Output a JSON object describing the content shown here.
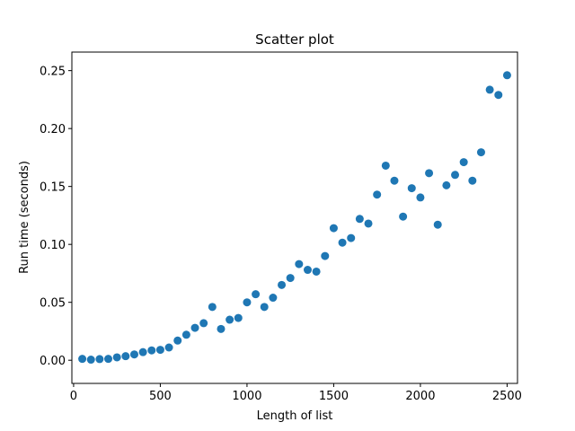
{
  "chart_data": {
    "type": "scatter",
    "title": "Scatter plot",
    "xlabel": "Length of list",
    "ylabel": "Run time (seconds)",
    "xlim": [
      -10,
      2560
    ],
    "ylim": [
      -0.02,
      0.266
    ],
    "xticks": [
      {
        "value": 0,
        "label": "0"
      },
      {
        "value": 500,
        "label": "500"
      },
      {
        "value": 1000,
        "label": "1000"
      },
      {
        "value": 1500,
        "label": "1500"
      },
      {
        "value": 2000,
        "label": "2000"
      },
      {
        "value": 2500,
        "label": "2500"
      }
    ],
    "yticks": [
      {
        "value": 0.0,
        "label": "0.00"
      },
      {
        "value": 0.05,
        "label": "0.05"
      },
      {
        "value": 0.1,
        "label": "0.10"
      },
      {
        "value": 0.15,
        "label": "0.15"
      },
      {
        "value": 0.2,
        "label": "0.20"
      },
      {
        "value": 0.25,
        "label": "0.25"
      }
    ],
    "grid": false,
    "color": "#1f77b4",
    "series": [
      {
        "x": [
          50,
          100,
          150,
          200,
          250,
          300,
          350,
          400,
          450,
          500,
          550,
          600,
          650,
          700,
          750,
          800,
          850,
          900,
          950,
          1000,
          1050,
          1100,
          1150,
          1200,
          1250,
          1300,
          1350,
          1400,
          1450,
          1500,
          1550,
          1600,
          1650,
          1700,
          1750,
          1800,
          1850,
          1900,
          1950,
          2000,
          2050,
          2100,
          2150,
          2200,
          2250,
          2300,
          2350,
          2400,
          2450,
          2500
        ],
        "y": [
          0.0012,
          0.0005,
          0.001,
          0.0012,
          0.0025,
          0.0035,
          0.005,
          0.007,
          0.0085,
          0.009,
          0.011,
          0.017,
          0.022,
          0.028,
          0.032,
          0.046,
          0.027,
          0.035,
          0.0365,
          0.05,
          0.057,
          0.046,
          0.054,
          0.065,
          0.071,
          0.083,
          0.078,
          0.0765,
          0.09,
          0.114,
          0.1015,
          0.1055,
          0.122,
          0.118,
          0.143,
          0.168,
          0.155,
          0.124,
          0.1485,
          0.1405,
          0.1615,
          0.117,
          0.151,
          0.16,
          0.171,
          0.155,
          0.1795,
          0.2335,
          0.229,
          0.246
        ]
      }
    ]
  }
}
